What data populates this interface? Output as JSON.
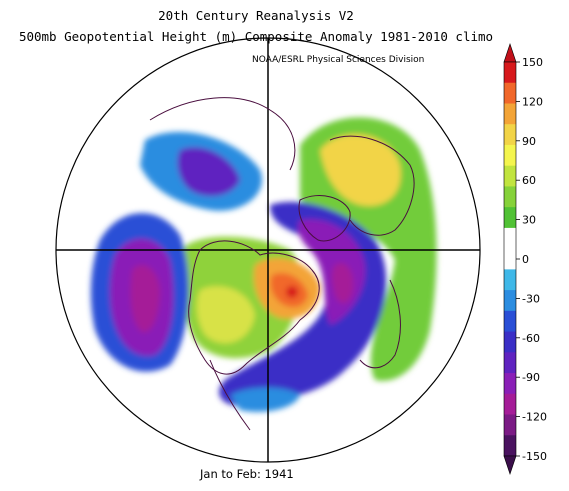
{
  "header": {
    "line1": "20th Century Reanalysis V2",
    "line2": "500mb Geopotential Height (m) Composite Anomaly 1981-2010 climo",
    "credit": "NOAA/ESRL Physical Sciences Division"
  },
  "footer": {
    "period": "Jan to Feb: 1941"
  },
  "colorbar": {
    "labels": [
      "150",
      "120",
      "90",
      "60",
      "30",
      "0",
      "-30",
      "-60",
      "-90",
      "-120",
      "-150"
    ],
    "colors": [
      "#d7191c",
      "#f1672a",
      "#f3a437",
      "#f2d447",
      "#f4f54e",
      "#c1e43f",
      "#86d23a",
      "#51c235",
      "#ffffff",
      "#ffffff",
      "#3fb8e8",
      "#2c8de0",
      "#2a4fd6",
      "#3a2fc6",
      "#5f23c0",
      "#8a1fb7",
      "#a51c98",
      "#7b1a85",
      "#4a1260"
    ],
    "top_color": "#c1101a",
    "bottom_color": "#3a0e4a"
  }
}
